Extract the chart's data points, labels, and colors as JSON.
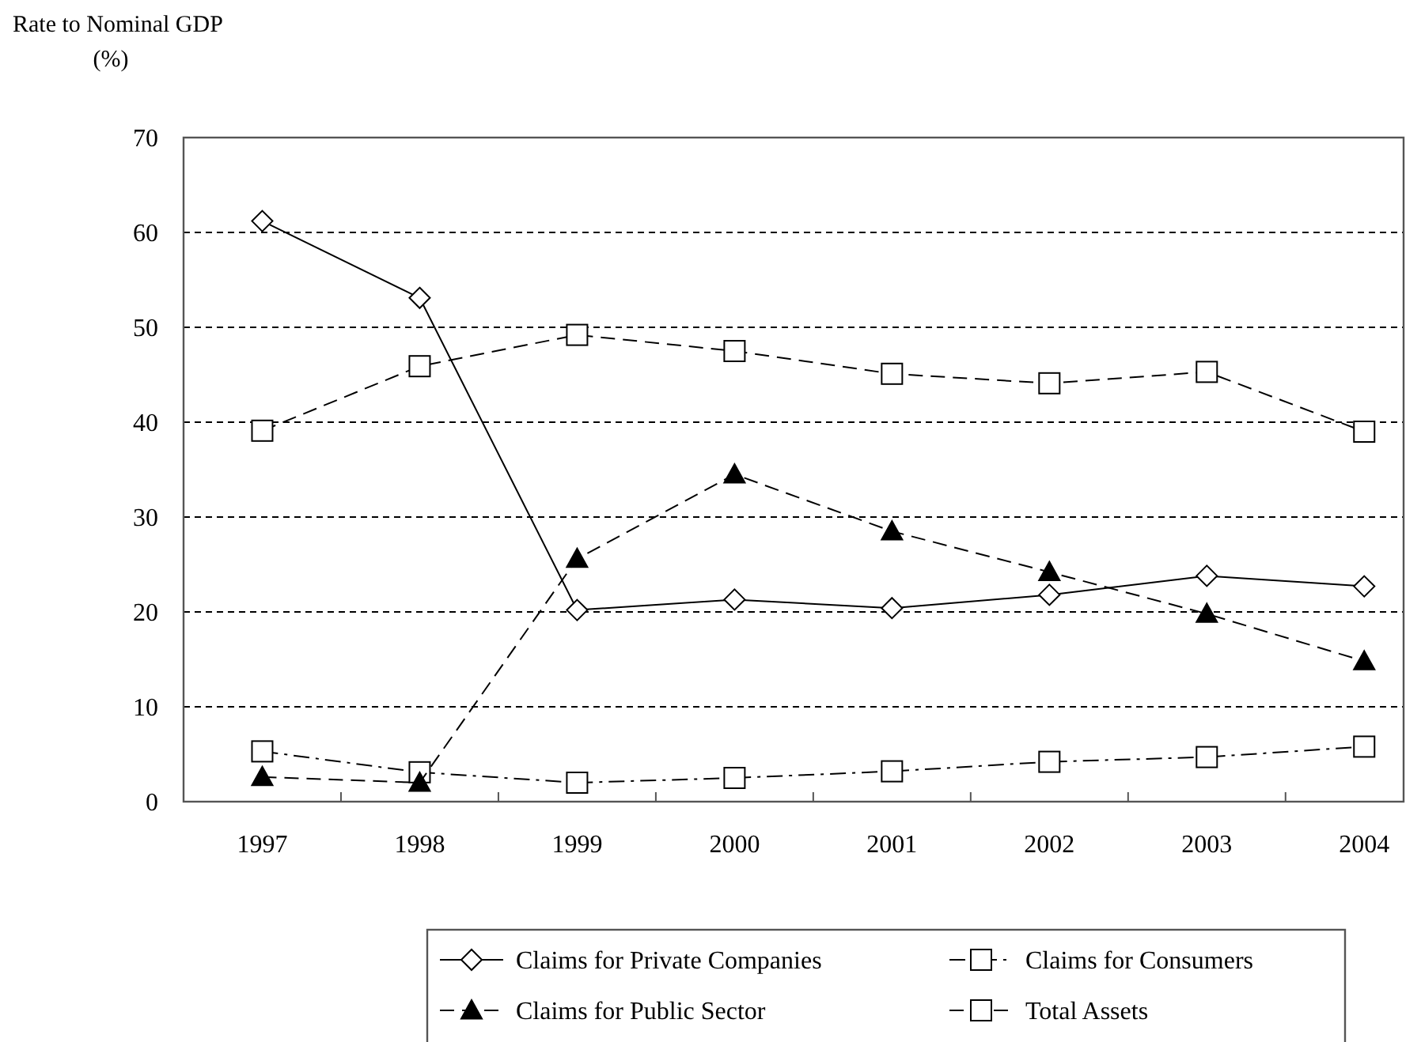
{
  "chart_data": {
    "type": "line",
    "ylabel": "Rate to Nominal GDP\n(%)",
    "categories": [
      "1997",
      "1998",
      "1999",
      "2000",
      "2001",
      "2002",
      "2003",
      "2004"
    ],
    "series": [
      {
        "name": "Claims for Private Companies",
        "color": "#000000",
        "marker": "diamond",
        "line_style": "solid",
        "values": [
          61.2,
          53.1,
          20.2,
          21.3,
          20.4,
          21.8,
          23.8,
          22.7
        ]
      },
      {
        "name": "Claims for Consumers",
        "color": "#000000",
        "marker": "square",
        "line_style": "dashdot",
        "values": [
          5.3,
          3.1,
          2.0,
          2.5,
          3.2,
          4.2,
          4.7,
          5.8
        ]
      },
      {
        "name": "Claims for Public Sector",
        "color": "#000000",
        "marker": "triangle",
        "line_style": "dashed",
        "values": [
          2.6,
          2.0,
          25.6,
          34.5,
          28.5,
          24.2,
          19.8,
          14.8
        ]
      },
      {
        "name": "Total Assets",
        "color": "#000000",
        "marker": "square",
        "line_style": "dashed",
        "values": [
          39.1,
          45.9,
          49.2,
          47.5,
          45.1,
          44.1,
          45.3,
          39.0
        ]
      }
    ],
    "ylim": [
      0,
      70
    ],
    "yticks": [
      0,
      10,
      20,
      30,
      40,
      50,
      60,
      70
    ],
    "grid": "y",
    "legend": "bottom"
  }
}
